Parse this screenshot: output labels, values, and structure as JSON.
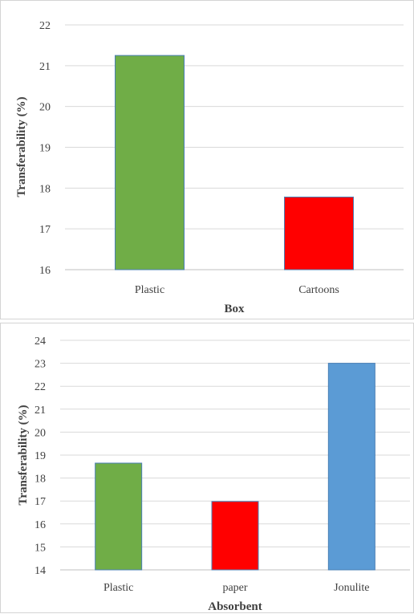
{
  "chart_data": [
    {
      "type": "bar",
      "title": "",
      "xlabel": "Box",
      "ylabel": "Transferability  (%)",
      "categories": [
        "Plastic",
        "Cartoons"
      ],
      "values": [
        21.25,
        17.78
      ],
      "colors": [
        "#70ad47",
        "#ff0000"
      ],
      "ylim": [
        16,
        22
      ],
      "yticks": [
        "16",
        "17",
        "18",
        "19",
        "20",
        "21",
        "22"
      ],
      "grid": true,
      "legend": "none"
    },
    {
      "type": "bar",
      "title": "",
      "xlabel": "Absorbent",
      "ylabel": "Transferability  (%)",
      "categories": [
        "Plastic",
        "paper",
        "Jonulite"
      ],
      "values": [
        18.65,
        16.98,
        23.0
      ],
      "colors": [
        "#70ad47",
        "#ff0000",
        "#5b9bd5"
      ],
      "ylim": [
        14,
        24
      ],
      "yticks": [
        "14",
        "15",
        "16",
        "17",
        "18",
        "19",
        "20",
        "21",
        "22",
        "23",
        "24"
      ],
      "grid": true,
      "legend": "none"
    }
  ],
  "style": {
    "grid_color": "#d9d9d9",
    "axis_color": "#bfbfbf",
    "bar_border": "#4a7fb5",
    "text_color": "#404040"
  }
}
